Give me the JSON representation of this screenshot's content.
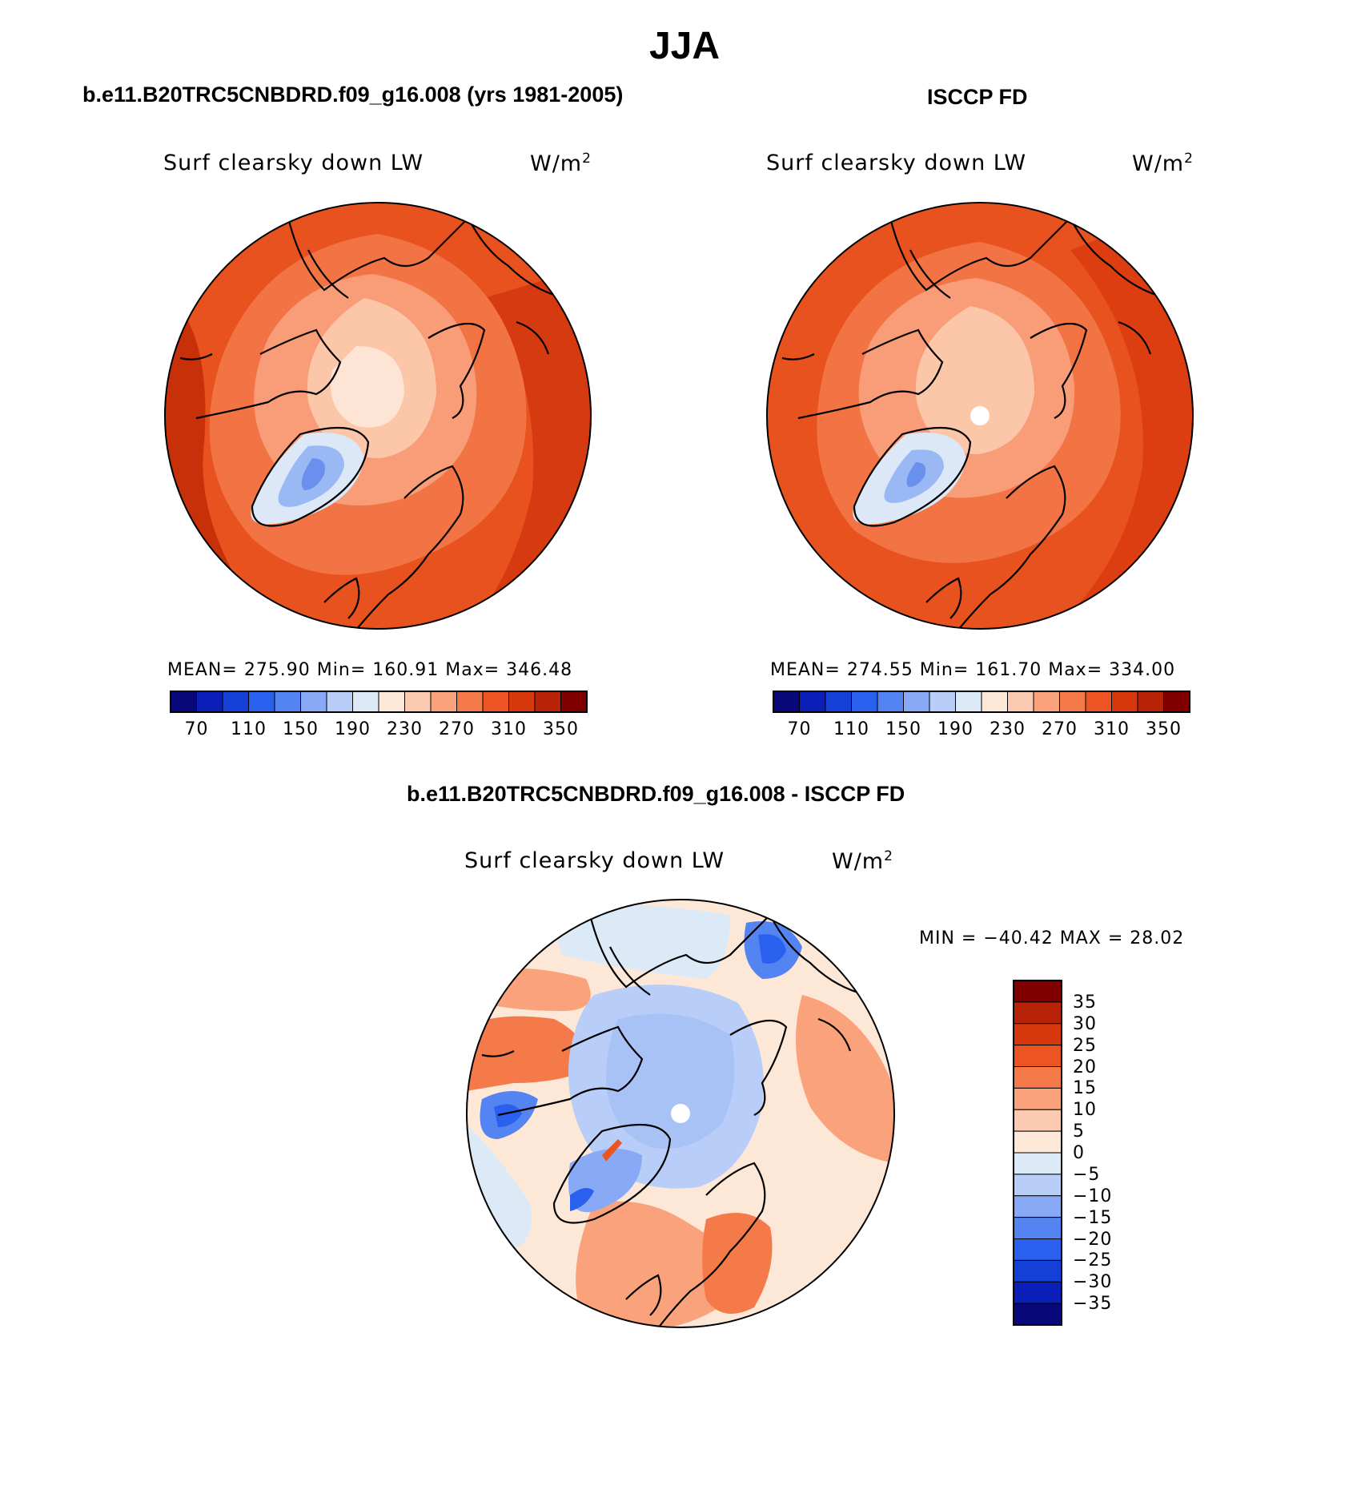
{
  "figure": {
    "season_title": "JJA"
  },
  "panels": [
    {
      "id": "model",
      "title": "b.e11.B20TRC5CNBDRD.f09_g16.008 (yrs 1981-2005)",
      "variable": "Surf clearsky down LW",
      "units_base": "W/m",
      "units_sup": "2",
      "stats": "MEAN= 275.90   Min= 160.91   Max= 346.48"
    },
    {
      "id": "obs",
      "title": "ISCCP FD",
      "variable": "Surf clearsky down LW",
      "units_base": "W/m",
      "units_sup": "2",
      "stats": "MEAN= 274.55   Min= 161.70   Max= 334.00"
    },
    {
      "id": "diff",
      "title": "b.e11.B20TRC5CNBDRD.f09_g16.008 - ISCCP FD",
      "variable": "Surf clearsky down LW",
      "units_base": "W/m",
      "units_sup": "2",
      "stats": "MIN = −40.42 MAX =  28.02"
    }
  ],
  "colorbars": {
    "abs": {
      "colors": [
        "#08087a",
        "#0a1eb8",
        "#1440d8",
        "#2a60ee",
        "#5484f2",
        "#88aaf6",
        "#b8cef8",
        "#dceaf8",
        "#fde8d8",
        "#fccab0",
        "#f9a27c",
        "#f57a4a",
        "#ec5424",
        "#d8380e",
        "#b82206",
        "#800000"
      ],
      "tick_labels": [
        "70",
        "110",
        "150",
        "190",
        "230",
        "270",
        "310",
        "350"
      ]
    },
    "diff": {
      "colors": [
        "#08087a",
        "#0a1eb8",
        "#1440d8",
        "#2a60ee",
        "#5484f2",
        "#88aaf6",
        "#b8cef8",
        "#dceaf8",
        "#fde8d8",
        "#fccab0",
        "#f9a27c",
        "#f57a4a",
        "#ec5424",
        "#d8380e",
        "#b82206",
        "#800000"
      ],
      "tick_labels": [
        "35",
        "30",
        "25",
        "20",
        "15",
        "10",
        "5",
        "0",
        "−5",
        "−10",
        "−15",
        "−20",
        "−25",
        "−30",
        "−35"
      ]
    }
  }
}
